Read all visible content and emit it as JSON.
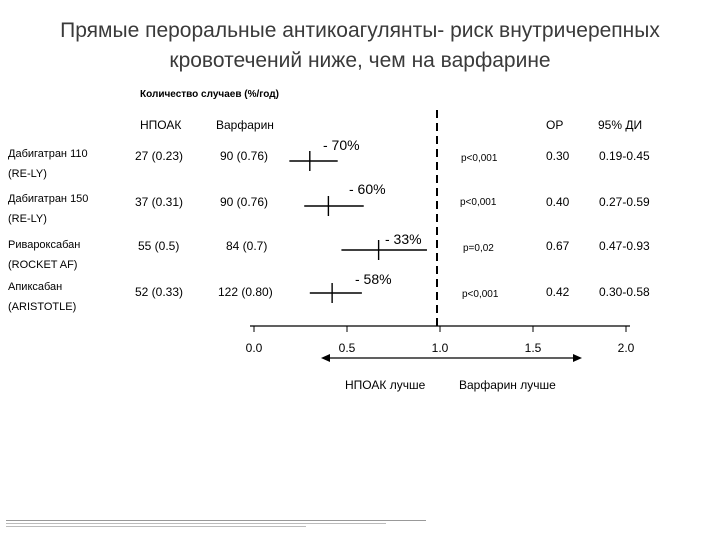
{
  "title_line1": "Прямые пероральные антикоагулянты- риск внутричерепных",
  "title_line2": "кровотечений ниже, чем на варфарине",
  "subtitle": "Количество случаев (%/год)",
  "headers": {
    "noac": "НПОАК",
    "warfarin": "Варфарин",
    "rr": "ОР",
    "ci": "95% ДИ"
  },
  "chart_data": {
    "type": "forest",
    "x_ticks": [
      "0.0",
      "0.5",
      "1.0",
      "1.5",
      "2.0"
    ],
    "xlim": [
      0,
      2
    ],
    "reference_line": 1.0,
    "left_label": "НПОАК лучше",
    "right_label": "Варфарин лучше",
    "rows": [
      {
        "name1": "Дабигатран 110",
        "name2": "(RE-LY)",
        "noac": "27 (0.23)",
        "warfarin": "90 (0.76)",
        "reduction": "- 70%",
        "p": "p<0,001",
        "rr": "0.30",
        "ci": "0.19-0.45",
        "rr_value": 0.3,
        "ci_low": 0.19,
        "ci_high": 0.45
      },
      {
        "name1": "Дабигатран 150",
        "name2": "(RE-LY)",
        "noac": "37 (0.31)",
        "warfarin": "90 (0.76)",
        "reduction": "- 60%",
        "p": "p<0,001",
        "rr": "0.40",
        "ci": "0.27-0.59",
        "rr_value": 0.4,
        "ci_low": 0.27,
        "ci_high": 0.59
      },
      {
        "name1": "Ривароксабан",
        "name2": "(ROCKET AF)",
        "noac": "55 (0.5)",
        "warfarin": "84 (0.7)",
        "reduction": "- 33%",
        "p": "p=0,02",
        "rr": "0.67",
        "ci": "0.47-0.93",
        "rr_value": 0.67,
        "ci_low": 0.47,
        "ci_high": 0.93
      },
      {
        "name1": "Апиксабан",
        "name2": "(ARISTOTLE)",
        "noac": "52 (0.33)",
        "warfarin": "122 (0.80)",
        "reduction": "- 58%",
        "p": "p<0,001",
        "rr": "0.42",
        "ci": "0.30-0.58",
        "rr_value": 0.42,
        "ci_low": 0.3,
        "ci_high": 0.58
      }
    ]
  },
  "colors": {
    "title": "#3a3a3a",
    "lines": "#000000"
  }
}
